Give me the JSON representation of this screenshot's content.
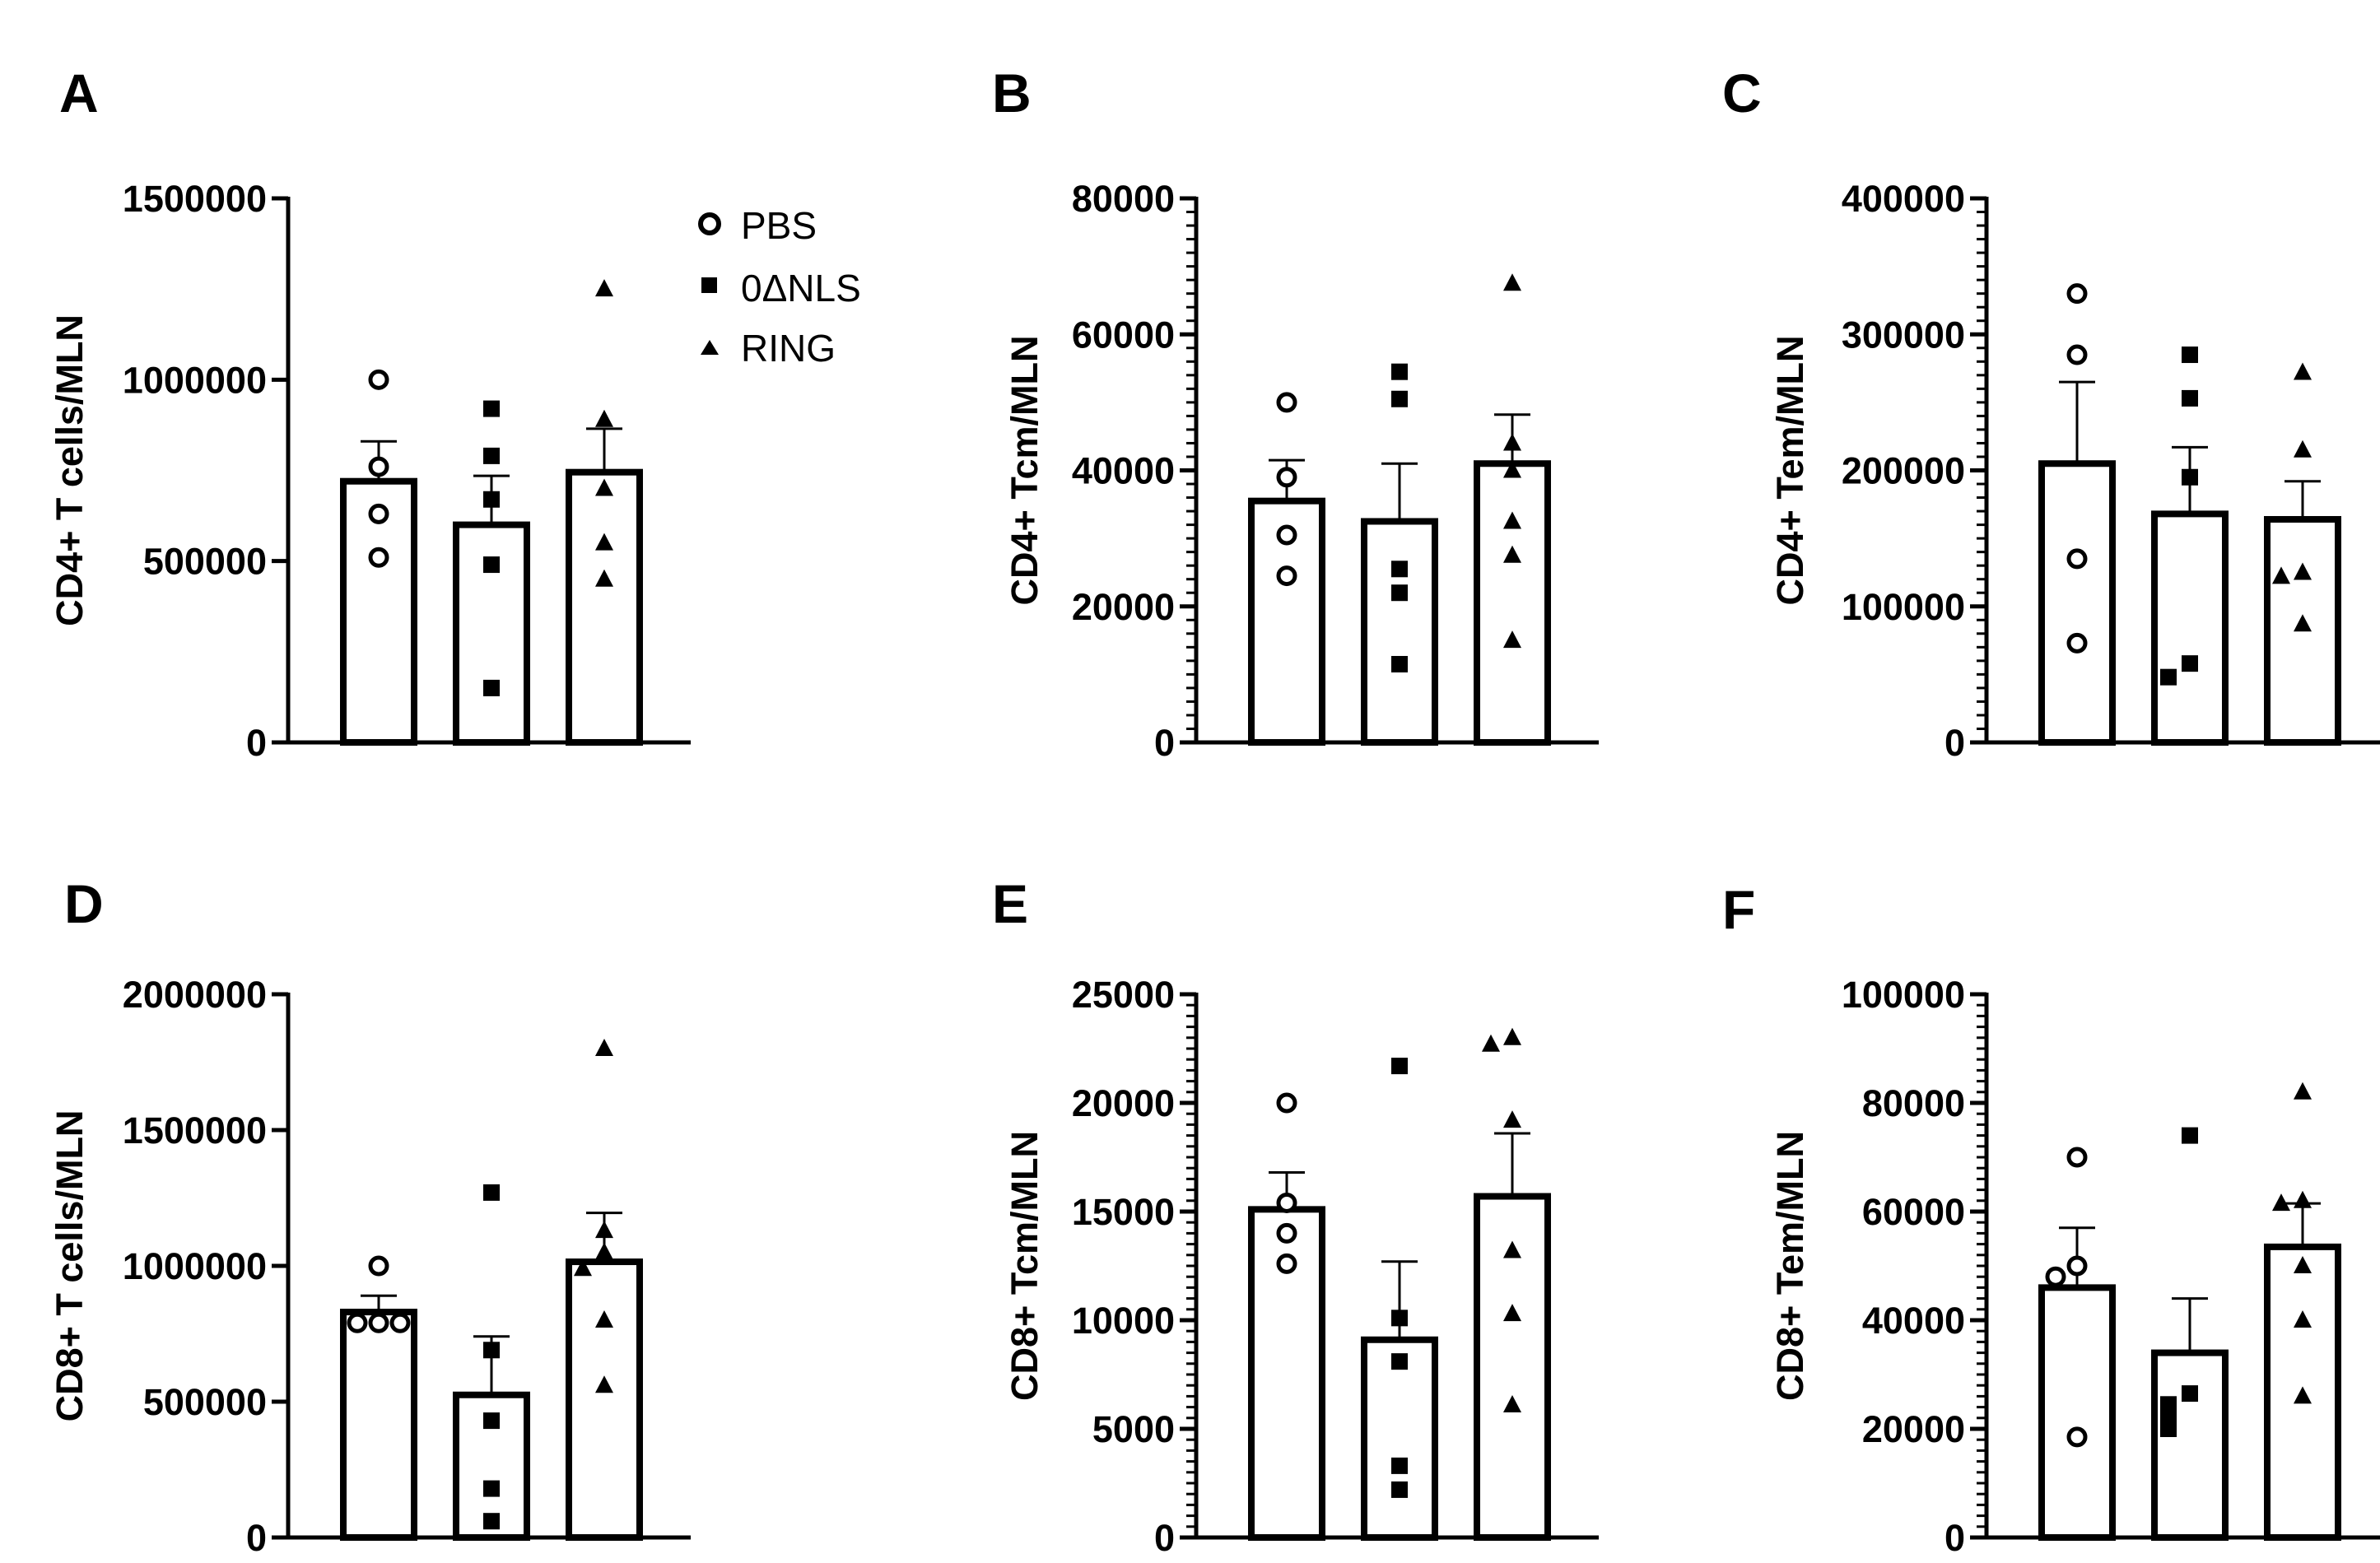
{
  "legend": [
    {
      "name": "PBS",
      "marker": "open-circle-icon"
    },
    {
      "name": "0ΔNLS",
      "marker": "filled-square-icon"
    },
    {
      "name": "RING",
      "marker": "filled-triangle-icon"
    }
  ],
  "chart_data": [
    {
      "panel": "A",
      "type": "bar",
      "ylabel": "CD4+ T cells/MLN",
      "ylim": [
        0,
        1500000
      ],
      "yticks": [
        "0",
        "500000",
        "1000000",
        "1500000"
      ],
      "minor_ticks": false,
      "categories": [
        "PBS",
        "0ΔNLS",
        "RING"
      ],
      "series": [
        {
          "name": "PBS",
          "mean": 720000,
          "sem": 110000,
          "points": [
            1000000,
            760000,
            630000,
            510000
          ]
        },
        {
          "name": "0ΔNLS",
          "mean": 600000,
          "sem": 135000,
          "points": [
            920000,
            790000,
            670000,
            490000,
            150000
          ]
        },
        {
          "name": "RING",
          "mean": 745000,
          "sem": 120000,
          "points": [
            1250000,
            890000,
            700000,
            550000,
            450000
          ]
        }
      ]
    },
    {
      "panel": "B",
      "type": "bar",
      "ylabel": "CD4+ Tcm/MLN",
      "ylim": [
        0,
        80000
      ],
      "yticks": [
        "0",
        "20000",
        "40000",
        "60000",
        "80000"
      ],
      "minor_ticks": true,
      "categories": [
        "PBS",
        "0ΔNLS",
        "RING"
      ],
      "series": [
        {
          "name": "PBS",
          "mean": 35500,
          "sem": 6000,
          "points": [
            50000,
            39000,
            30500,
            24500
          ]
        },
        {
          "name": "0ΔNLS",
          "mean": 32500,
          "sem": 8500,
          "points": [
            54500,
            50500,
            25500,
            22000,
            11500
          ]
        },
        {
          "name": "RING",
          "mean": 41000,
          "sem": 7200,
          "points": [
            67500,
            44000,
            40000,
            32500,
            27500,
            15000
          ]
        }
      ]
    },
    {
      "panel": "C",
      "type": "bar",
      "ylabel": "CD4+ Tem/MLN",
      "ylim": [
        0,
        400000
      ],
      "yticks": [
        "0",
        "100000",
        "200000",
        "300000",
        "400000"
      ],
      "minor_ticks": true,
      "categories": [
        "PBS",
        "0ΔNLS",
        "RING"
      ],
      "series": [
        {
          "name": "PBS",
          "mean": 205000,
          "sem": 60000,
          "points": [
            330000,
            285000,
            135000,
            73000
          ]
        },
        {
          "name": "0ΔNLS",
          "mean": 168000,
          "sem": 49000,
          "points": [
            285000,
            253000,
            195000,
            58000,
            48000
          ]
        },
        {
          "name": "RING",
          "mean": 164000,
          "sem": 28000,
          "points": [
            272000,
            215000,
            125000,
            122000,
            87000
          ]
        }
      ]
    },
    {
      "panel": "D",
      "type": "bar",
      "ylabel": "CD8+ T cells/MLN",
      "ylim": [
        0,
        2000000
      ],
      "yticks": [
        "0",
        "500000",
        "1000000",
        "1500000",
        "2000000"
      ],
      "minor_ticks": false,
      "categories": [
        "PBS",
        "0ΔNLS",
        "RING"
      ],
      "series": [
        {
          "name": "PBS",
          "mean": 830000,
          "sem": 60000,
          "points": [
            1000000,
            790000,
            790000,
            790000
          ]
        },
        {
          "name": "0ΔNLS",
          "mean": 525000,
          "sem": 215000,
          "points": [
            1270000,
            690000,
            430000,
            180000,
            60000
          ]
        },
        {
          "name": "RING",
          "mean": 1015000,
          "sem": 180000,
          "points": [
            1800000,
            1130000,
            1050000,
            990000,
            800000,
            560000
          ]
        }
      ]
    },
    {
      "panel": "E",
      "type": "bar",
      "ylabel": "CD8+ Tcm/MLN",
      "ylim": [
        0,
        25000
      ],
      "yticks": [
        "0",
        "5000",
        "10000",
        "15000",
        "20000",
        "25000"
      ],
      "minor_ticks": true,
      "categories": [
        "PBS",
        "0ΔNLS",
        "RING"
      ],
      "series": [
        {
          "name": "PBS",
          "mean": 15100,
          "sem": 1700,
          "points": [
            20000,
            15400,
            14000,
            12600
          ]
        },
        {
          "name": "0ΔNLS",
          "mean": 9100,
          "sem": 3600,
          "points": [
            21700,
            10100,
            8100,
            3300,
            2200
          ]
        },
        {
          "name": "RING",
          "mean": 15700,
          "sem": 2900,
          "points": [
            22700,
            23000,
            19200,
            13200,
            10300,
            6100
          ]
        }
      ]
    },
    {
      "panel": "F",
      "type": "bar",
      "ylabel": "CD8+ Tem/MLN",
      "ylim": [
        0,
        100000
      ],
      "yticks": [
        "0",
        "20000",
        "40000",
        "60000",
        "80000",
        "100000"
      ],
      "minor_ticks": true,
      "categories": [
        "PBS",
        "0ΔNLS",
        "RING"
      ],
      "series": [
        {
          "name": "PBS",
          "mean": 46000,
          "sem": 11000,
          "points": [
            70000,
            50000,
            48000,
            18500
          ]
        },
        {
          "name": "0ΔNLS",
          "mean": 34000,
          "sem": 10000,
          "points": [
            74000,
            26500,
            24500,
            23000,
            20000
          ]
        },
        {
          "name": "RING",
          "mean": 53500,
          "sem": 8000,
          "points": [
            82000,
            62000,
            61500,
            50000,
            40000,
            26000
          ]
        }
      ]
    }
  ]
}
